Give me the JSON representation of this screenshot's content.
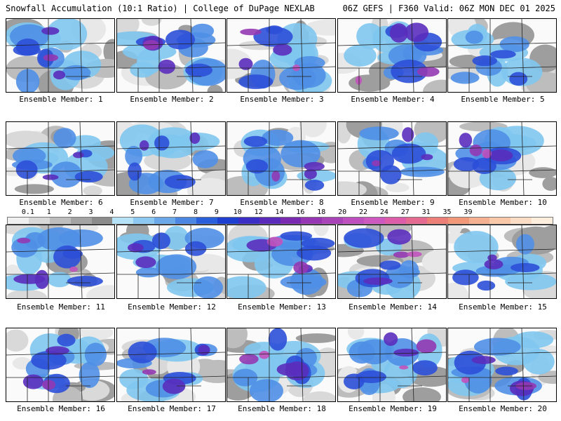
{
  "header": {
    "title_left": "Snowfall Accumulation (10:1 Ratio) | College of DuPage NEXLAB",
    "title_right": "06Z GEFS | F360 Valid: 06Z MON DEC 01 2025"
  },
  "colorbar": {
    "tick_labels": [
      "0.1",
      "1",
      "2",
      "3",
      "4",
      "5",
      "6",
      "7",
      "8",
      "9",
      "10",
      "12",
      "14",
      "16",
      "18",
      "20",
      "22",
      "24",
      "27",
      "31",
      "35",
      "39"
    ],
    "colors": [
      "#efefef",
      "#d8d8d8",
      "#bdbdbd",
      "#a3a3a3",
      "#8b8b8b",
      "#b5e2f7",
      "#8dc8f2",
      "#6aa8ea",
      "#4a86e2",
      "#2a5fdb",
      "#1e3fcf",
      "#3a2ec6",
      "#5a2aba",
      "#7a2ab0",
      "#9636b2",
      "#a844b8",
      "#bd4fbe",
      "#cc58c0",
      "#dc5ca8",
      "#e46a90",
      "#ec8078",
      "#f09878",
      "#f4b090",
      "#f8c8a8",
      "#fbdcc4",
      "#fdeede"
    ]
  },
  "panels": [
    {
      "label": "Ensemble Member: 1",
      "intensity": 0.65
    },
    {
      "label": "Ensemble Member: 2",
      "intensity": 0.7
    },
    {
      "label": "Ensemble Member: 3",
      "intensity": 0.75
    },
    {
      "label": "Ensemble Member: 4",
      "intensity": 0.75
    },
    {
      "label": "Ensemble Member: 5",
      "intensity": 0.45
    },
    {
      "label": "Ensemble Member: 6",
      "intensity": 0.55
    },
    {
      "label": "Ensemble Member: 7",
      "intensity": 0.6
    },
    {
      "label": "Ensemble Member: 8",
      "intensity": 0.7
    },
    {
      "label": "Ensemble Member: 9",
      "intensity": 0.7
    },
    {
      "label": "Ensemble Member: 10",
      "intensity": 0.8
    },
    {
      "label": "Ensemble Member: 11",
      "intensity": 0.8
    },
    {
      "label": "Ensemble Member: 12",
      "intensity": 0.55
    },
    {
      "label": "Ensemble Member: 13",
      "intensity": 0.8
    },
    {
      "label": "Ensemble Member: 14",
      "intensity": 0.8
    },
    {
      "label": "Ensemble Member: 15",
      "intensity": 0.5
    },
    {
      "label": "Ensemble Member: 16",
      "intensity": 0.65
    },
    {
      "label": "Ensemble Member: 17",
      "intensity": 0.7
    },
    {
      "label": "Ensemble Member: 18",
      "intensity": 0.8
    },
    {
      "label": "Ensemble Member: 19",
      "intensity": 0.75
    },
    {
      "label": "Ensemble Member: 20",
      "intensity": 0.8
    }
  ]
}
